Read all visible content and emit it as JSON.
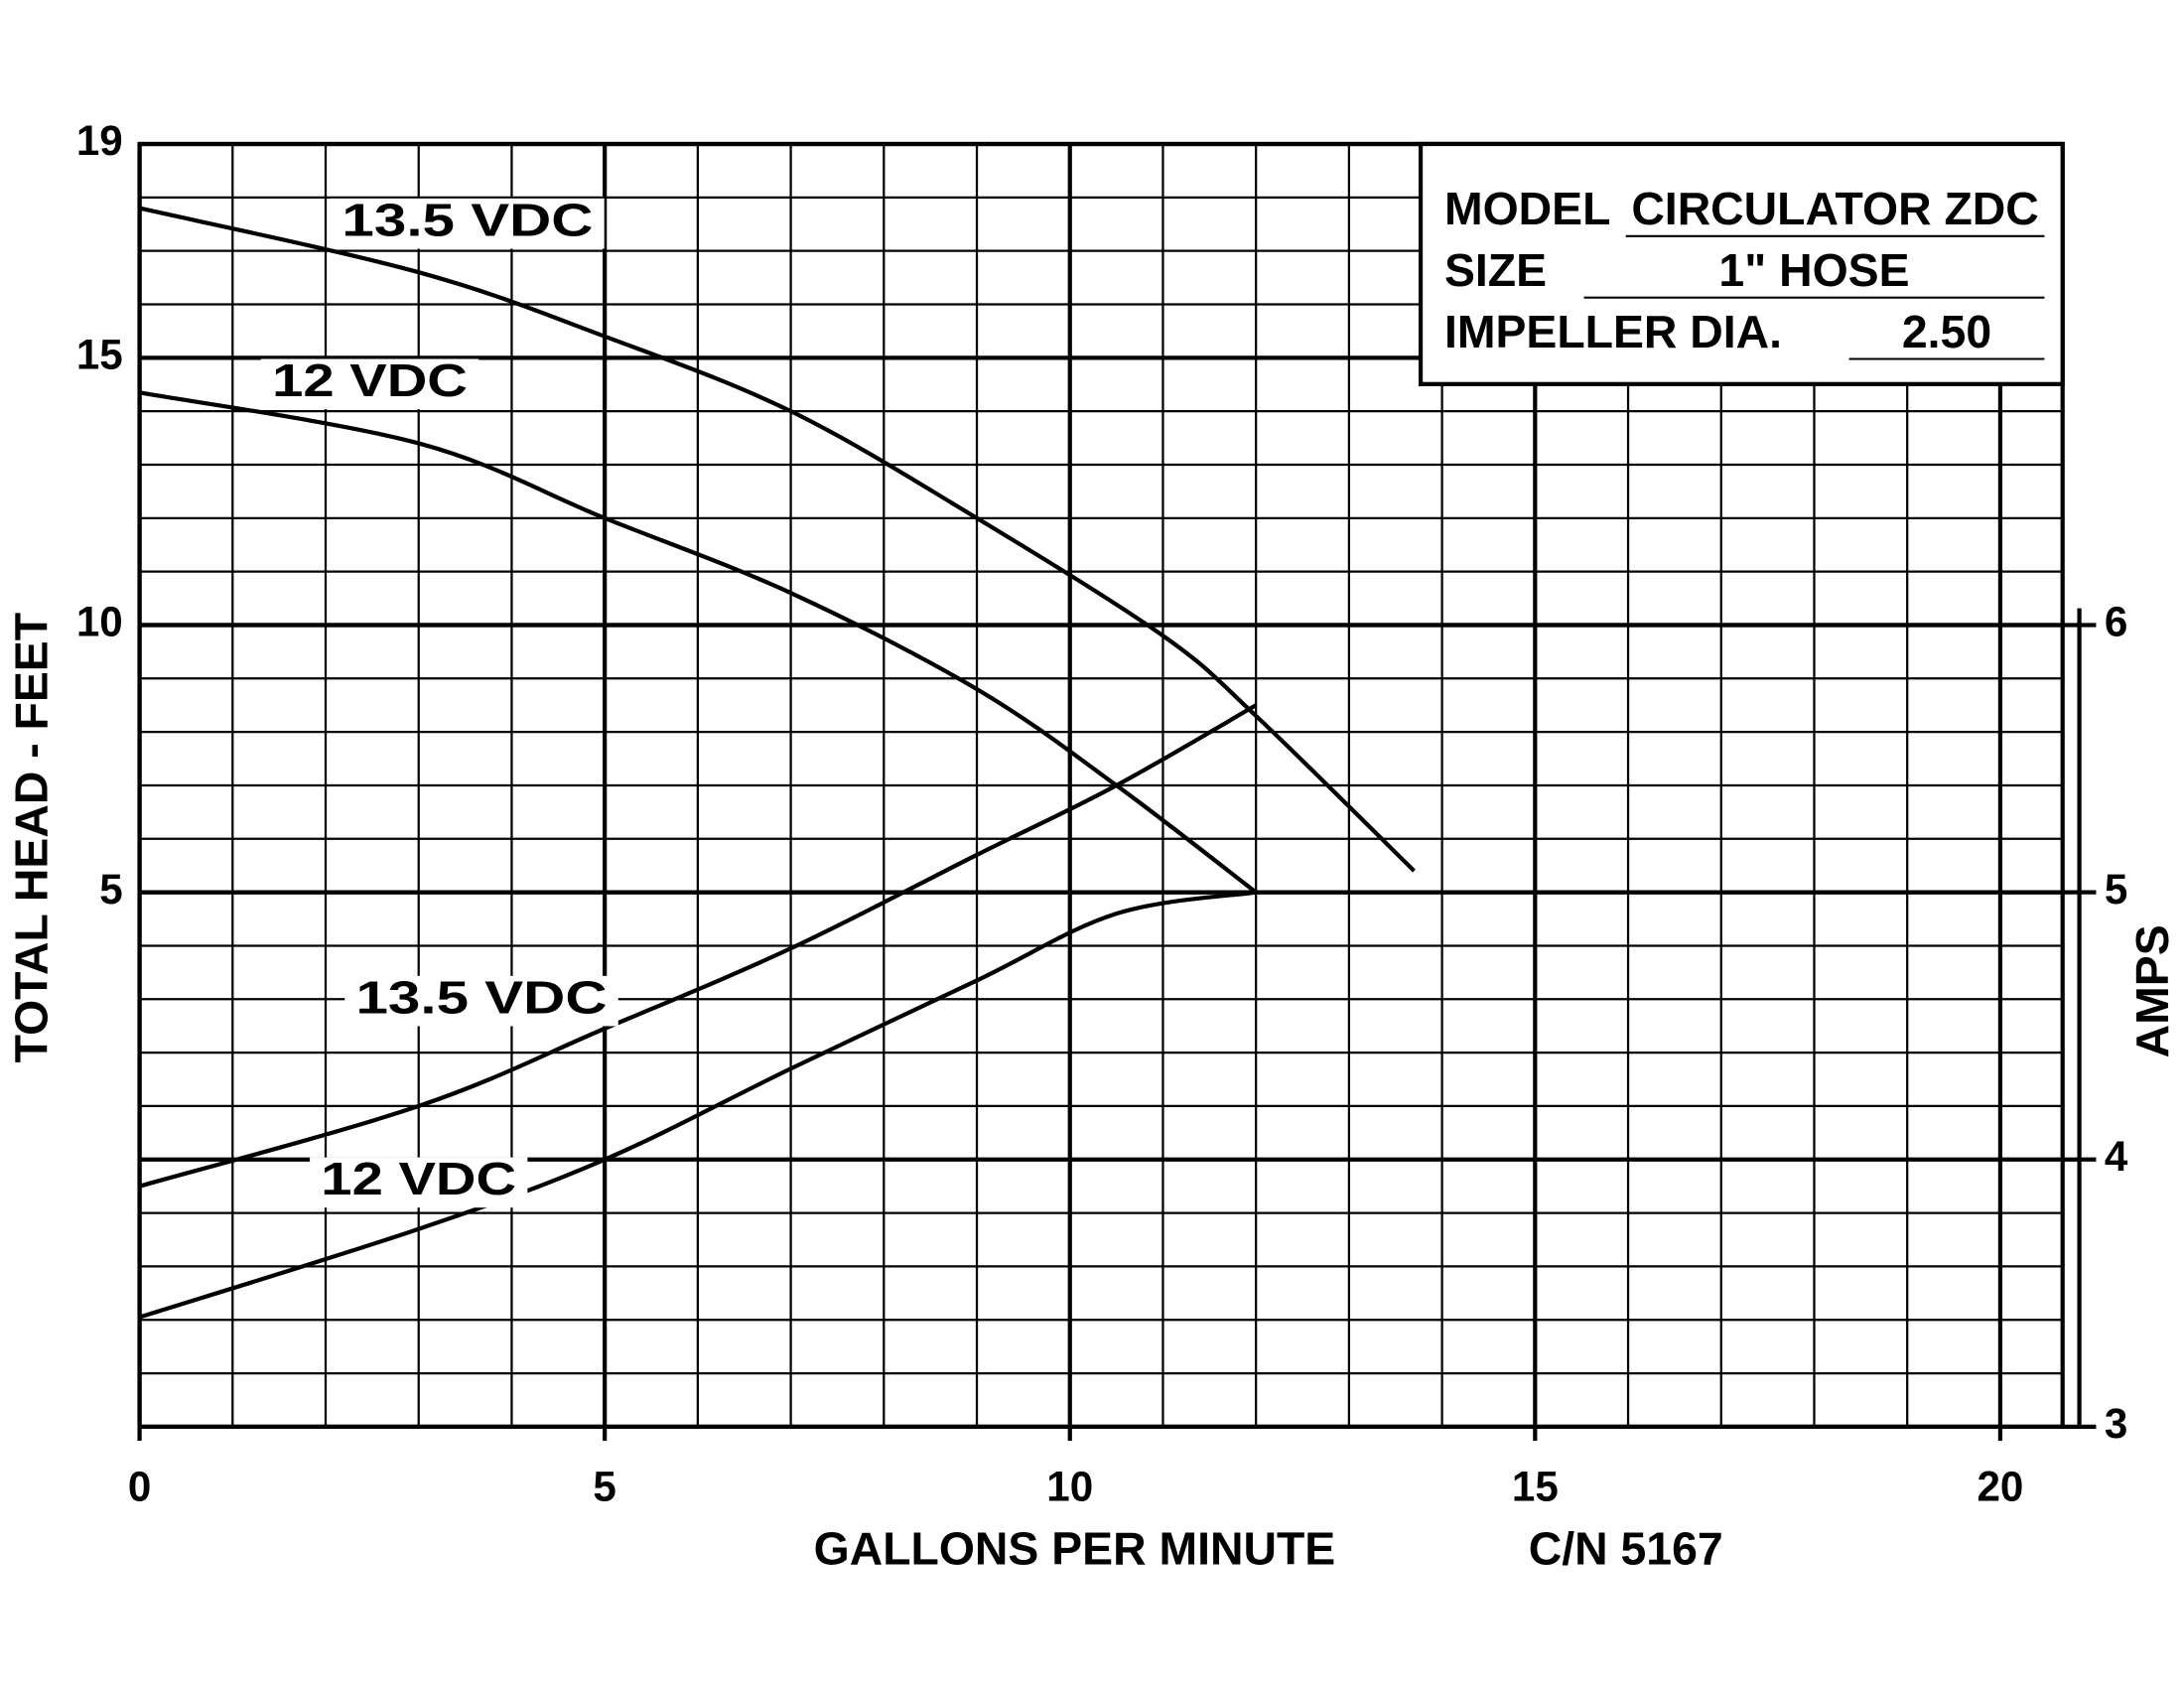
{
  "chart_data": {
    "type": "line",
    "x_label": "GALLONS PER MINUTE",
    "y_label": "TOTAL HEAD - FEET",
    "y2_label": "AMPS",
    "note": "C/N 5167",
    "info": [
      {
        "label": "MODEL",
        "value": "CIRCULATOR ZDC"
      },
      {
        "label": "SIZE",
        "value": "1\" HOSE"
      },
      {
        "label": "IMPELLER DIA.",
        "value": "2.50"
      }
    ],
    "xlim": [
      0,
      20.67
    ],
    "xticks": [
      0,
      5,
      10,
      15,
      20
    ],
    "ylim": [
      -5,
      19
    ],
    "yticks": [
      5,
      10,
      15,
      19
    ],
    "y2lim": [
      3,
      7.8
    ],
    "y2ticks": [
      3,
      4,
      5,
      6
    ],
    "grid": {
      "x_step": 1,
      "y_step": 1
    },
    "series": [
      {
        "name": "13.5 VDC",
        "color": "#000000",
        "axis": "y",
        "x": [
          0,
          3,
          5,
          7,
          9,
          11,
          12,
          13.7
        ],
        "values": [
          17.8,
          16.6,
          15.4,
          14.0,
          12.0,
          9.8,
          8.3,
          5.4
        ]
      },
      {
        "name": "12 VDC",
        "color": "#000000",
        "axis": "y",
        "x": [
          0,
          3,
          5,
          7,
          9,
          10.5,
          12
        ],
        "values": [
          14.35,
          13.4,
          12.0,
          10.6,
          8.8,
          7.0,
          5.0
        ]
      },
      {
        "name": "13.5 VDC",
        "color": "#000000",
        "axis": "y2",
        "x": [
          0,
          3,
          5,
          7,
          9,
          10.5,
          12
        ],
        "values": [
          3.9,
          4.2,
          4.49,
          4.79,
          5.14,
          5.4,
          5.7
        ]
      },
      {
        "name": "12 VDC",
        "color": "#000000",
        "axis": "y2",
        "x": [
          0,
          3,
          5,
          7,
          9,
          10.5,
          12
        ],
        "values": [
          3.41,
          3.74,
          4.0,
          4.34,
          4.67,
          4.92,
          5.0
        ]
      }
    ]
  }
}
